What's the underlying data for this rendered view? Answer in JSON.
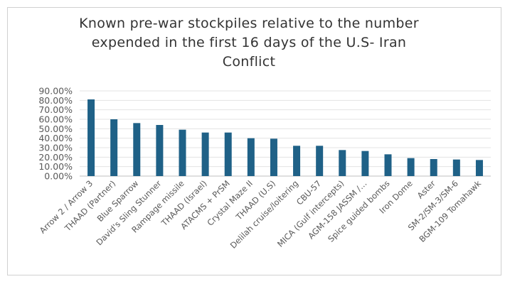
{
  "chart_data": {
    "type": "bar",
    "title": "Known pre-war stockpiles relative to the number expended in the first 16 days of the U.S- Iran Conflict",
    "xlabel": "",
    "ylabel": "",
    "ylim": [
      0,
      90
    ],
    "yticks": [
      "0.00%",
      "10.00%",
      "20.00%",
      "30.00%",
      "40.00%",
      "50.00%",
      "60.00%",
      "70.00%",
      "80.00%",
      "90.00%"
    ],
    "grid": true,
    "legend": "none",
    "bar_color": "#1f6187",
    "categories": [
      "Arrow 2 / Arrow 3",
      "THAAD (Partner)",
      "Blue Sparrow",
      "David's Sling Stunner",
      "Rampage  missile",
      "THAAD (Israel)",
      "ATACMS + PrSM",
      "Crystal Maze II",
      "THAAD (U.S)",
      "Delilah cruise/loitering",
      "CBU-57",
      "MICA (Gulf intercepts)",
      "AGM-158 JASSM /…",
      "Spice guided bombs",
      "Iron Dome",
      "Aster",
      "SM-2/SM-3/SM-6",
      "BGM-109 Tomahawk"
    ],
    "values": [
      81,
      60,
      56,
      54,
      49,
      46,
      46,
      40,
      39.5,
      32,
      32,
      27.5,
      26.5,
      23,
      19,
      18,
      17.5,
      17
    ]
  }
}
